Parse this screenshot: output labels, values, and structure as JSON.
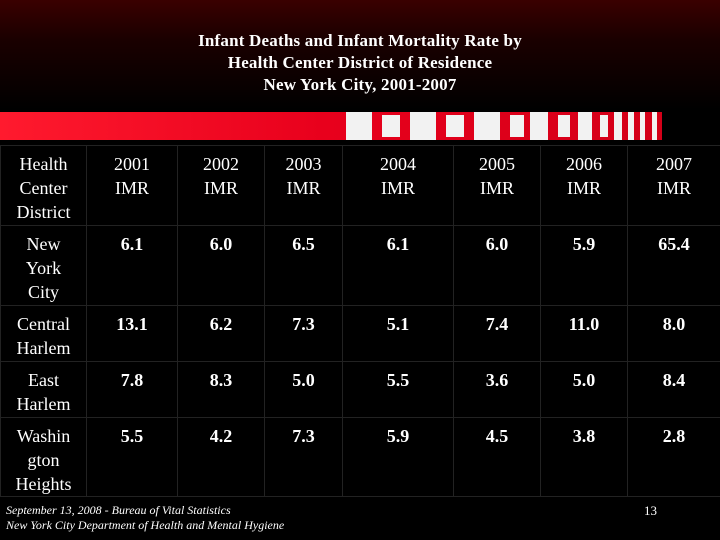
{
  "title": {
    "line1": "Infant Deaths and Infant Mortality Rate by",
    "line2": "Health Center District of Residence",
    "line3": "New York City, 2001-2007"
  },
  "table": {
    "header_first": [
      "Health",
      "Center",
      "District"
    ],
    "columns": [
      [
        "2001",
        "IMR"
      ],
      [
        "2002",
        "IMR"
      ],
      [
        "2003",
        "IMR"
      ],
      [
        "2004",
        "IMR"
      ],
      [
        "2005",
        "IMR"
      ],
      [
        "2006",
        "IMR"
      ],
      [
        "2007",
        "IMR"
      ]
    ],
    "rows": [
      {
        "name": [
          "New",
          "York",
          "City"
        ],
        "values": [
          "6.1",
          "6.0",
          "6.5",
          "6.1",
          "6.0",
          "5.9",
          "65.4"
        ]
      },
      {
        "name": [
          "Central",
          "Harlem"
        ],
        "values": [
          "13.1",
          "6.2",
          "7.3",
          "5.1",
          "7.4",
          "11.0",
          "8.0"
        ]
      },
      {
        "name": [
          "East",
          "Harlem"
        ],
        "values": [
          "7.8",
          "8.3",
          "5.0",
          "5.5",
          "3.6",
          "5.0",
          "8.4"
        ]
      },
      {
        "name": [
          "Washin",
          "gton",
          "Heights"
        ],
        "values": [
          "5.5",
          "4.2",
          "7.3",
          "5.9",
          "4.5",
          "3.8",
          "2.8"
        ]
      }
    ]
  },
  "footer": {
    "line1": "September 13, 2008 - Bureau of Vital Statistics",
    "line2": "New York City Department of Health and Mental Hygiene"
  },
  "page_number": "13",
  "colors": {
    "stripe": "#e8001c",
    "stripe_light": "#f0f0f0",
    "background": "#000000"
  }
}
